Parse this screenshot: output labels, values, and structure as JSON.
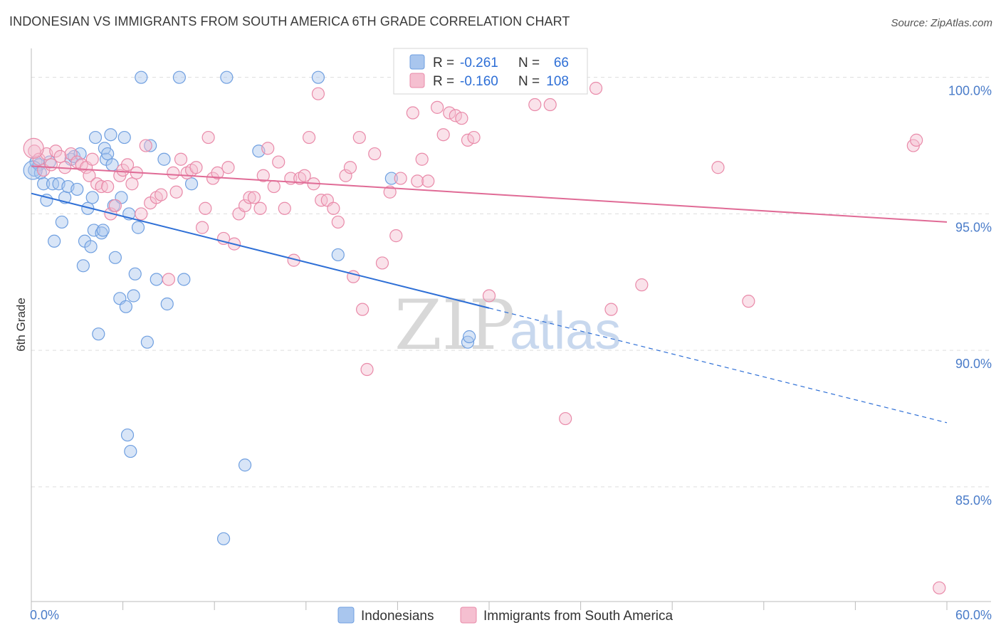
{
  "title": "INDONESIAN VS IMMIGRANTS FROM SOUTH AMERICA 6TH GRADE CORRELATION CHART",
  "source": "Source: ZipAtlas.com",
  "watermark": {
    "zip": "ZIP",
    "atlas": "atlas"
  },
  "colors": {
    "blue": "#6f9fe0",
    "blue_fill": "#a9c6ee",
    "blue_line": "#2e6fd6",
    "pink": "#e98aa9",
    "pink_fill": "#f5bfd0",
    "pink_line": "#e06b96",
    "grid": "#dddddd",
    "tick_text": "#4a7cc9"
  },
  "legend": {
    "r_label": "R =",
    "n_label": "N =",
    "rows": [
      {
        "r": "-0.261",
        "n": "66"
      },
      {
        "r": "-0.160",
        "n": "108"
      }
    ]
  },
  "chart_data": {
    "type": "scatter",
    "title": "INDONESIAN VS IMMIGRANTS FROM SOUTH AMERICA 6TH GRADE CORRELATION CHART",
    "xlabel": "",
    "ylabel": "6th Grade",
    "xlim": [
      0,
      60
    ],
    "ylim": [
      80.8,
      100.8
    ],
    "x_ticks_labels": [
      "0.0%",
      "60.0%"
    ],
    "y_ticks": [
      85,
      90,
      95,
      100
    ],
    "y_tick_labels": [
      "85.0%",
      "90.0%",
      "95.0%",
      "100.0%"
    ],
    "grid": true,
    "legend_position": "top-center",
    "series": [
      {
        "name": "Indonesians",
        "color": "#6f9fe0",
        "trend": {
          "x0": 0,
          "y0": 95.75,
          "x1": 30,
          "y1": 91.55,
          "dash_to_x": 60,
          "dash_to_y": 87.35
        },
        "points": [
          [
            0.2,
            96.6
          ],
          [
            0.3,
            96.9
          ],
          [
            0.5,
            96.8
          ],
          [
            0.6,
            96.5
          ],
          [
            0.8,
            96.1
          ],
          [
            1.0,
            95.5
          ],
          [
            1.2,
            96.9
          ],
          [
            1.4,
            96.1
          ],
          [
            1.5,
            94.0
          ],
          [
            1.8,
            96.1
          ],
          [
            2.0,
            94.7
          ],
          [
            2.2,
            95.6
          ],
          [
            2.4,
            96.0
          ],
          [
            2.6,
            97.0
          ],
          [
            2.8,
            97.1
          ],
          [
            3.0,
            95.9
          ],
          [
            3.2,
            97.2
          ],
          [
            3.4,
            93.1
          ],
          [
            3.5,
            94.0
          ],
          [
            3.7,
            95.2
          ],
          [
            3.9,
            93.8
          ],
          [
            4.0,
            95.6
          ],
          [
            4.1,
            94.4
          ],
          [
            4.2,
            97.8
          ],
          [
            4.4,
            90.6
          ],
          [
            4.6,
            94.3
          ],
          [
            4.7,
            94.4
          ],
          [
            4.8,
            97.4
          ],
          [
            4.9,
            97.0
          ],
          [
            5.0,
            97.2
          ],
          [
            5.2,
            97.9
          ],
          [
            5.3,
            96.8
          ],
          [
            5.4,
            95.3
          ],
          [
            5.5,
            93.4
          ],
          [
            5.8,
            91.9
          ],
          [
            5.9,
            95.6
          ],
          [
            6.1,
            97.8
          ],
          [
            6.2,
            91.6
          ],
          [
            6.3,
            86.9
          ],
          [
            6.4,
            95.0
          ],
          [
            6.5,
            86.3
          ],
          [
            6.7,
            92.0
          ],
          [
            6.8,
            92.8
          ],
          [
            7.0,
            94.5
          ],
          [
            7.2,
            100.0
          ],
          [
            7.6,
            90.3
          ],
          [
            7.8,
            97.5
          ],
          [
            8.2,
            92.6
          ],
          [
            8.7,
            97.0
          ],
          [
            8.9,
            91.7
          ],
          [
            9.7,
            100.0
          ],
          [
            10.0,
            92.6
          ],
          [
            10.5,
            96.1
          ],
          [
            12.6,
            83.1
          ],
          [
            12.8,
            100.0
          ],
          [
            14.0,
            85.8
          ],
          [
            14.9,
            97.3
          ],
          [
            18.8,
            100.0
          ],
          [
            20.1,
            93.5
          ],
          [
            23.6,
            96.3
          ],
          [
            28.6,
            90.3
          ],
          [
            28.7,
            90.5
          ]
        ]
      },
      {
        "name": "Immigrants from South America",
        "color": "#e98aa9",
        "trend": {
          "x0": 0,
          "y0": 96.75,
          "x1": 60,
          "y1": 94.7
        },
        "points": [
          [
            0.2,
            97.3
          ],
          [
            0.5,
            97.0
          ],
          [
            0.8,
            96.6
          ],
          [
            1.0,
            97.2
          ],
          [
            1.3,
            96.8
          ],
          [
            1.6,
            97.3
          ],
          [
            1.9,
            97.1
          ],
          [
            2.2,
            96.7
          ],
          [
            2.6,
            97.2
          ],
          [
            3.0,
            96.9
          ],
          [
            3.3,
            96.8
          ],
          [
            3.6,
            96.7
          ],
          [
            3.8,
            96.4
          ],
          [
            4.0,
            97.0
          ],
          [
            4.3,
            96.1
          ],
          [
            4.6,
            96.0
          ],
          [
            5.0,
            96.0
          ],
          [
            5.2,
            95.0
          ],
          [
            5.5,
            95.3
          ],
          [
            5.8,
            96.4
          ],
          [
            6.0,
            96.6
          ],
          [
            6.3,
            96.8
          ],
          [
            6.6,
            96.1
          ],
          [
            6.9,
            96.5
          ],
          [
            7.2,
            95.0
          ],
          [
            7.5,
            97.5
          ],
          [
            7.8,
            95.4
          ],
          [
            8.2,
            95.6
          ],
          [
            8.5,
            95.7
          ],
          [
            9.0,
            92.6
          ],
          [
            9.3,
            96.5
          ],
          [
            9.5,
            95.8
          ],
          [
            9.8,
            97.0
          ],
          [
            10.2,
            96.5
          ],
          [
            10.5,
            96.6
          ],
          [
            10.8,
            96.7
          ],
          [
            11.2,
            94.5
          ],
          [
            11.4,
            95.2
          ],
          [
            11.6,
            97.8
          ],
          [
            11.9,
            96.3
          ],
          [
            12.2,
            96.5
          ],
          [
            12.6,
            94.1
          ],
          [
            12.9,
            96.7
          ],
          [
            13.3,
            93.9
          ],
          [
            13.6,
            95.0
          ],
          [
            14.0,
            95.3
          ],
          [
            14.3,
            95.6
          ],
          [
            14.6,
            95.6
          ],
          [
            15.0,
            95.2
          ],
          [
            15.2,
            96.4
          ],
          [
            15.5,
            97.4
          ],
          [
            15.9,
            96.0
          ],
          [
            16.2,
            96.9
          ],
          [
            16.6,
            95.2
          ],
          [
            17.0,
            96.3
          ],
          [
            17.2,
            93.3
          ],
          [
            17.6,
            96.3
          ],
          [
            17.9,
            96.4
          ],
          [
            18.2,
            97.8
          ],
          [
            18.5,
            96.1
          ],
          [
            18.8,
            99.4
          ],
          [
            19.0,
            95.5
          ],
          [
            19.4,
            95.5
          ],
          [
            19.8,
            95.2
          ],
          [
            20.1,
            94.7
          ],
          [
            20.6,
            96.4
          ],
          [
            20.9,
            96.7
          ],
          [
            21.1,
            92.7
          ],
          [
            21.5,
            97.8
          ],
          [
            21.7,
            91.5
          ],
          [
            22.0,
            89.3
          ],
          [
            22.5,
            97.2
          ],
          [
            23.0,
            93.2
          ],
          [
            23.5,
            95.8
          ],
          [
            23.9,
            94.2
          ],
          [
            24.2,
            96.3
          ],
          [
            24.6,
            100.0
          ],
          [
            25.0,
            98.7
          ],
          [
            25.3,
            96.2
          ],
          [
            25.6,
            97.0
          ],
          [
            26.0,
            96.2
          ],
          [
            26.6,
            98.9
          ],
          [
            27.0,
            97.9
          ],
          [
            27.4,
            98.7
          ],
          [
            27.8,
            98.6
          ],
          [
            28.2,
            98.5
          ],
          [
            28.6,
            97.7
          ],
          [
            29.0,
            97.8
          ],
          [
            30.0,
            92.0
          ],
          [
            32.0,
            100.0
          ],
          [
            33.0,
            99.0
          ],
          [
            34.0,
            99.0
          ],
          [
            35.0,
            87.5
          ],
          [
            36.0,
            100.0
          ],
          [
            37.0,
            99.6
          ],
          [
            38.0,
            91.5
          ],
          [
            40.0,
            92.4
          ],
          [
            45.0,
            96.7
          ],
          [
            47.0,
            91.8
          ],
          [
            57.8,
            97.5
          ],
          [
            58.0,
            97.7
          ],
          [
            59.5,
            81.3
          ]
        ]
      }
    ]
  }
}
